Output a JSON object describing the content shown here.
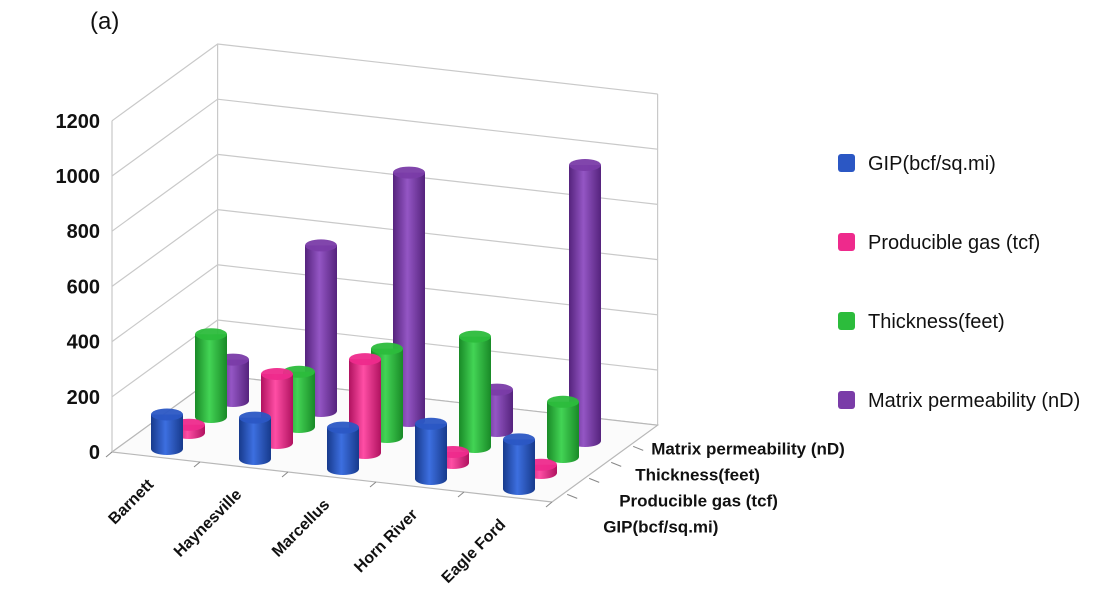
{
  "panel_label": "(a)",
  "chart_data": {
    "type": "bar",
    "subtype": "3d-column",
    "title": "",
    "xlabel": "",
    "ylabel": "",
    "ylim": [
      0,
      1200
    ],
    "yticks": [
      0,
      200,
      400,
      600,
      800,
      1000,
      1200
    ],
    "grid": true,
    "legend_position": "right",
    "categories": [
      "Barnett",
      "Haynesville",
      "Marcellus",
      "Horn River",
      "Eagle Ford"
    ],
    "series": [
      {
        "name": "GIP(bcf/sq.mi)",
        "color": "#2b57c4",
        "values": [
          125,
          150,
          150,
          200,
          180
        ]
      },
      {
        "name": "Producible gas (tcf)",
        "color": "#ee2a8c",
        "values": [
          30,
          250,
          340,
          40,
          30
        ]
      },
      {
        "name": "Thickness(feet)",
        "color": "#2cbc3c",
        "values": [
          300,
          200,
          320,
          400,
          200
        ]
      },
      {
        "name": "Matrix permeability (nD)",
        "color": "#7a3ca8",
        "values": [
          150,
          600,
          900,
          150,
          1000
        ]
      }
    ],
    "depth_labels": [
      "GIP(bcf/sq.mi)",
      "Producible gas (tcf)",
      "Thickness(feet)",
      "Matrix permeability (nD)"
    ]
  }
}
